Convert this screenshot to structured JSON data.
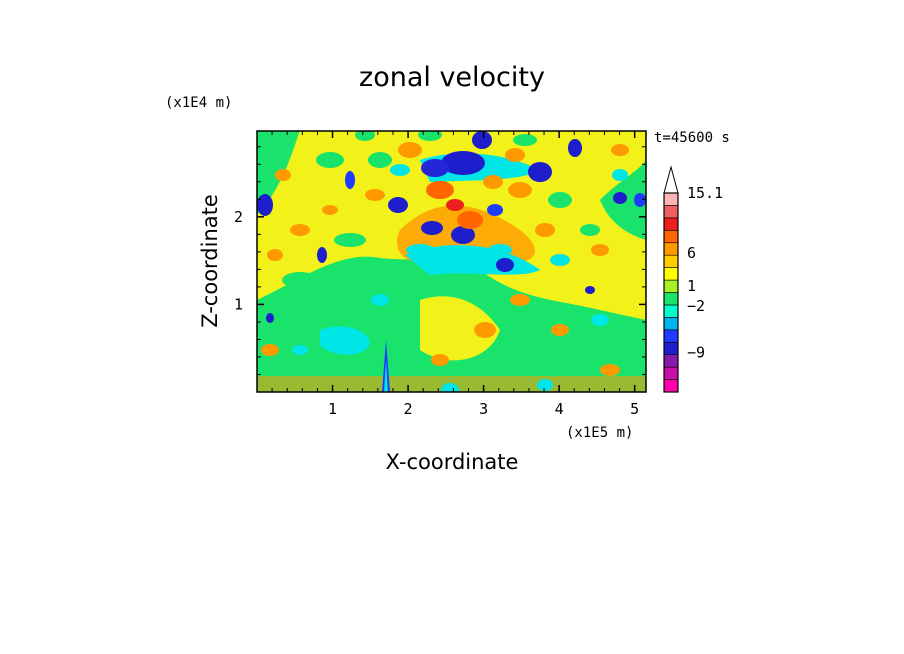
{
  "chart_data": {
    "type": "heatmap",
    "title": "zonal velocity",
    "xlabel": "X-coordinate",
    "ylabel": "Z-coordinate",
    "x_unit": "(x1E5 m)",
    "y_unit": "(x1E4 m)",
    "time_label": "t=45600 s",
    "xlim": [
      0,
      5.15
    ],
    "ylim": [
      0,
      2.98
    ],
    "x_ticks": [
      1,
      2,
      3,
      4,
      5
    ],
    "y_ticks": [
      1,
      2
    ],
    "colorbar": {
      "labels": [
        {
          "value": 15.1,
          "text": "15.1"
        },
        {
          "value": 6,
          "text": "6"
        },
        {
          "value": 1,
          "text": "1"
        },
        {
          "value": -2,
          "text": "−2"
        },
        {
          "value": -9,
          "text": "−9"
        }
      ],
      "levels": [
        {
          "color": "#ff00aa"
        },
        {
          "color": "#c80fa8"
        },
        {
          "color": "#8a1aaa"
        },
        {
          "color": "#1e1ecc"
        },
        {
          "color": "#1e3cff"
        },
        {
          "color": "#00b4f0"
        },
        {
          "color": "#00ffcc"
        },
        {
          "color": "#19e36a"
        },
        {
          "color": "#a6f024"
        },
        {
          "color": "#ffff00"
        },
        {
          "color": "#ffcc00"
        },
        {
          "color": "#ff9900"
        },
        {
          "color": "#ff6600"
        },
        {
          "color": "#ee1f1f"
        },
        {
          "color": "#f06060"
        },
        {
          "color": "#fab4b4"
        }
      ]
    }
  }
}
